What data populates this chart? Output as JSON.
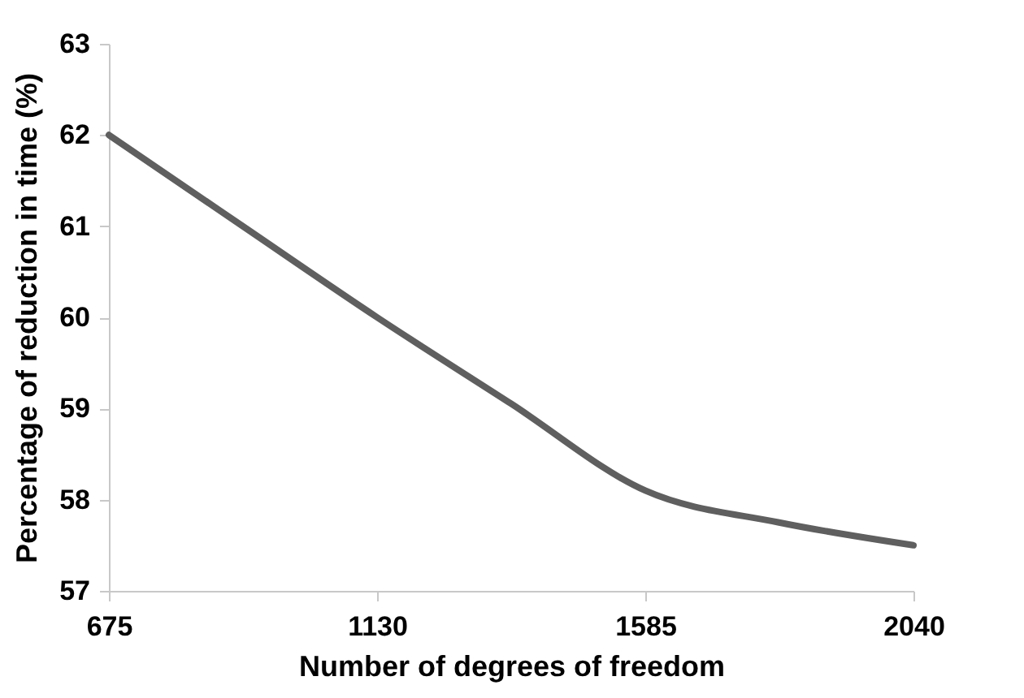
{
  "chart_data": {
    "type": "line",
    "xlabel": "Number of degrees of freedom",
    "ylabel": "Percentage of reduction in time (%)",
    "x": [
      675,
      902,
      1130,
      1358,
      1585,
      1812,
      2040
    ],
    "series": [
      {
        "color": "#5f5f5f",
        "values": [
          62,
          61.0,
          60,
          59.05,
          58.1,
          57.75,
          57.5
        ]
      }
    ],
    "xlim": [
      675,
      2040
    ],
    "xticks": [
      675,
      1130,
      1585,
      2040
    ],
    "ylim": [
      57,
      63
    ],
    "yticks": [
      57,
      58,
      59,
      60,
      61,
      62,
      63
    ],
    "grid": false,
    "line_style": "solid"
  }
}
